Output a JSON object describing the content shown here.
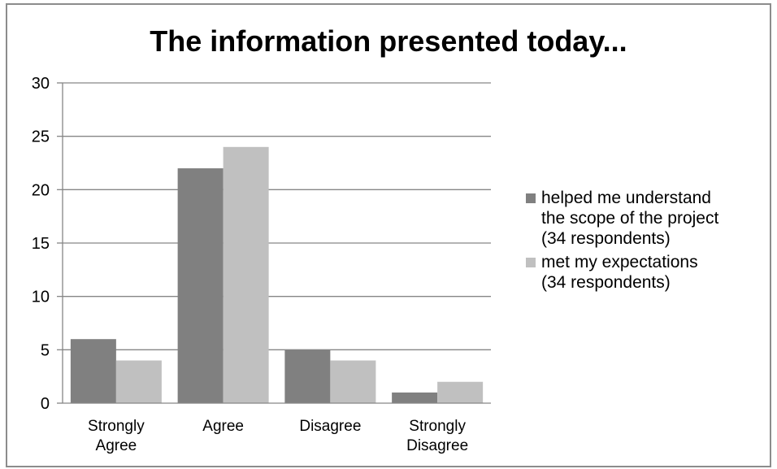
{
  "chart_data": {
    "type": "bar",
    "title": "The information presented today...",
    "categories": [
      "Strongly\nAgree",
      "Agree",
      "Disagree",
      "Strongly\nDisagree"
    ],
    "series": [
      {
        "name": "helped me understand\nthe scope of the project\n(34 respondents)",
        "values": [
          6,
          22,
          5,
          1
        ],
        "color": "#808080"
      },
      {
        "name": "met my expectations\n(34 respondents)",
        "values": [
          4,
          24,
          4,
          2
        ],
        "color": "#c0c0c0"
      }
    ],
    "ylim": [
      0,
      30
    ],
    "yticks": [
      0,
      5,
      10,
      15,
      20,
      25,
      30
    ],
    "grid": true,
    "legend": "right"
  }
}
